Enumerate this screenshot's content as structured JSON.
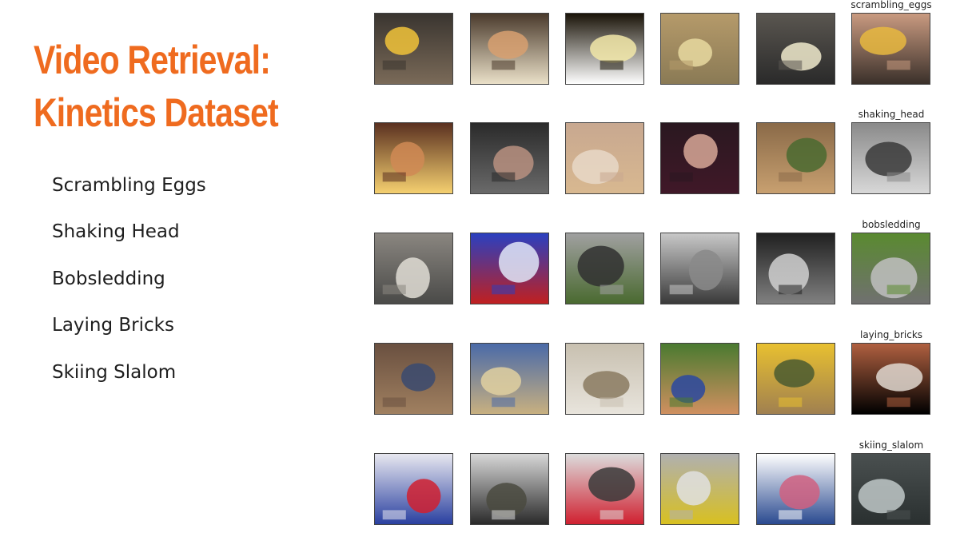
{
  "title": {
    "line1": "Video Retrieval:",
    "line2": "Kinetics Dataset"
  },
  "classes": [
    "Scrambling Eggs",
    "Shaking Head",
    "Bobsledding",
    "Laying Bricks",
    "Skiing Slalom"
  ],
  "rows": [
    {
      "label": "scrambling_eggs",
      "thumbs": [
        {
          "scene": "eggs-pan-yellow",
          "colors": [
            "#3a3530",
            "#f1c33a",
            "#7a6a58"
          ]
        },
        {
          "scene": "eggs-pan-fried",
          "colors": [
            "#4a3a2c",
            "#d8a070",
            "#eae0c8"
          ]
        },
        {
          "scene": "eggs-bowl",
          "colors": [
            "#1a1408",
            "#f2e7a8",
            "#ffffff"
          ]
        },
        {
          "scene": "eggs-closeup",
          "colors": [
            "#b59a6a",
            "#e8d9a0",
            "#8a7a55"
          ]
        },
        {
          "scene": "eggs-scrambled-pan",
          "colors": [
            "#5a5650",
            "#f0eacc",
            "#2a2a2a"
          ]
        },
        {
          "scene": "eggs-hand-pan",
          "colors": [
            "#c99a80",
            "#e8b840",
            "#3a302a"
          ]
        }
      ]
    },
    {
      "label": "shaking_head",
      "thumbs": [
        {
          "scene": "baby-restaurant",
          "colors": [
            "#5a3020",
            "#d08a55",
            "#f5d070"
          ]
        },
        {
          "scene": "baby-highchair",
          "colors": [
            "#2a2a2a",
            "#b89080",
            "#6a6a6a"
          ]
        },
        {
          "scene": "toddler-smiling",
          "colors": [
            "#c8a890",
            "#e8d8c8",
            "#d8b890"
          ]
        },
        {
          "scene": "baby-hat",
          "colors": [
            "#2a1820",
            "#d8a898",
            "#401828"
          ]
        },
        {
          "scene": "woman-garden",
          "colors": [
            "#8a6a48",
            "#4a6a30",
            "#c8a070"
          ]
        },
        {
          "scene": "boy-walking",
          "colors": [
            "#8a8a8a",
            "#3a3a3a",
            "#d8d8d8"
          ]
        }
      ]
    },
    {
      "label": "bobsledding",
      "thumbs": [
        {
          "scene": "bob-snow-track",
          "colors": [
            "#8a8680",
            "#e0ddd5",
            "#4a4a48"
          ]
        },
        {
          "scene": "bob-team-sled",
          "colors": [
            "#2a40c0",
            "#e0e8f8",
            "#c02020"
          ]
        },
        {
          "scene": "bob-ice-walls",
          "colors": [
            "#a0a0a0",
            "#303030",
            "#4a6a30"
          ]
        },
        {
          "scene": "bob-aerial",
          "colors": [
            "#c8c8c8",
            "#8a8a8a",
            "#3a3a3a"
          ]
        },
        {
          "scene": "bob-tunnel",
          "colors": [
            "#202020",
            "#d0d0d0",
            "#808080"
          ]
        },
        {
          "scene": "bob-grass-track",
          "colors": [
            "#5a8a30",
            "#c0c0c0",
            "#707070"
          ]
        }
      ]
    },
    {
      "label": "laying_bricks",
      "thumbs": [
        {
          "scene": "brick-worker",
          "colors": [
            "#6a5040",
            "#3a4a70",
            "#a08060"
          ]
        },
        {
          "scene": "brick-wall-blue",
          "colors": [
            "#4a6aa8",
            "#e0d0a0",
            "#c8b080"
          ]
        },
        {
          "scene": "brick-trowel",
          "colors": [
            "#c8c0b0",
            "#8a7a60",
            "#e8e4dc"
          ]
        },
        {
          "scene": "brick-man-grass",
          "colors": [
            "#4a7a30",
            "#2a48a0",
            "#d09060"
          ]
        },
        {
          "scene": "brick-yellow-frame",
          "colors": [
            "#e8c030",
            "#4a5a30",
            "#a08050"
          ]
        },
        {
          "scene": "brick-man-wall",
          "colors": [
            "#b06040",
            "#e0d8d0",
            "#000000"
          ]
        }
      ]
    },
    {
      "label": "skiing_slalom",
      "thumbs": [
        {
          "scene": "ski-gate-red",
          "colors": [
            "#e8e8f0",
            "#d02030",
            "#2a40a0"
          ]
        },
        {
          "scene": "ski-crowd",
          "colors": [
            "#d8d8d8",
            "#4a4a40",
            "#2a2a2a"
          ]
        },
        {
          "scene": "ski-skier-slope",
          "colors": [
            "#dcdcdc",
            "#3a3a3a",
            "#d02030"
          ]
        },
        {
          "scene": "ski-yellow-skier",
          "colors": [
            "#b0b0b0",
            "#e0e0e0",
            "#d8c020"
          ]
        },
        {
          "scene": "ski-tv-broadcast",
          "colors": [
            "#ffffff",
            "#d06080",
            "#2a4a90"
          ]
        },
        {
          "scene": "ski-dark-course",
          "colors": [
            "#4a5050",
            "#c0c8c8",
            "#2a3030"
          ]
        }
      ]
    }
  ]
}
